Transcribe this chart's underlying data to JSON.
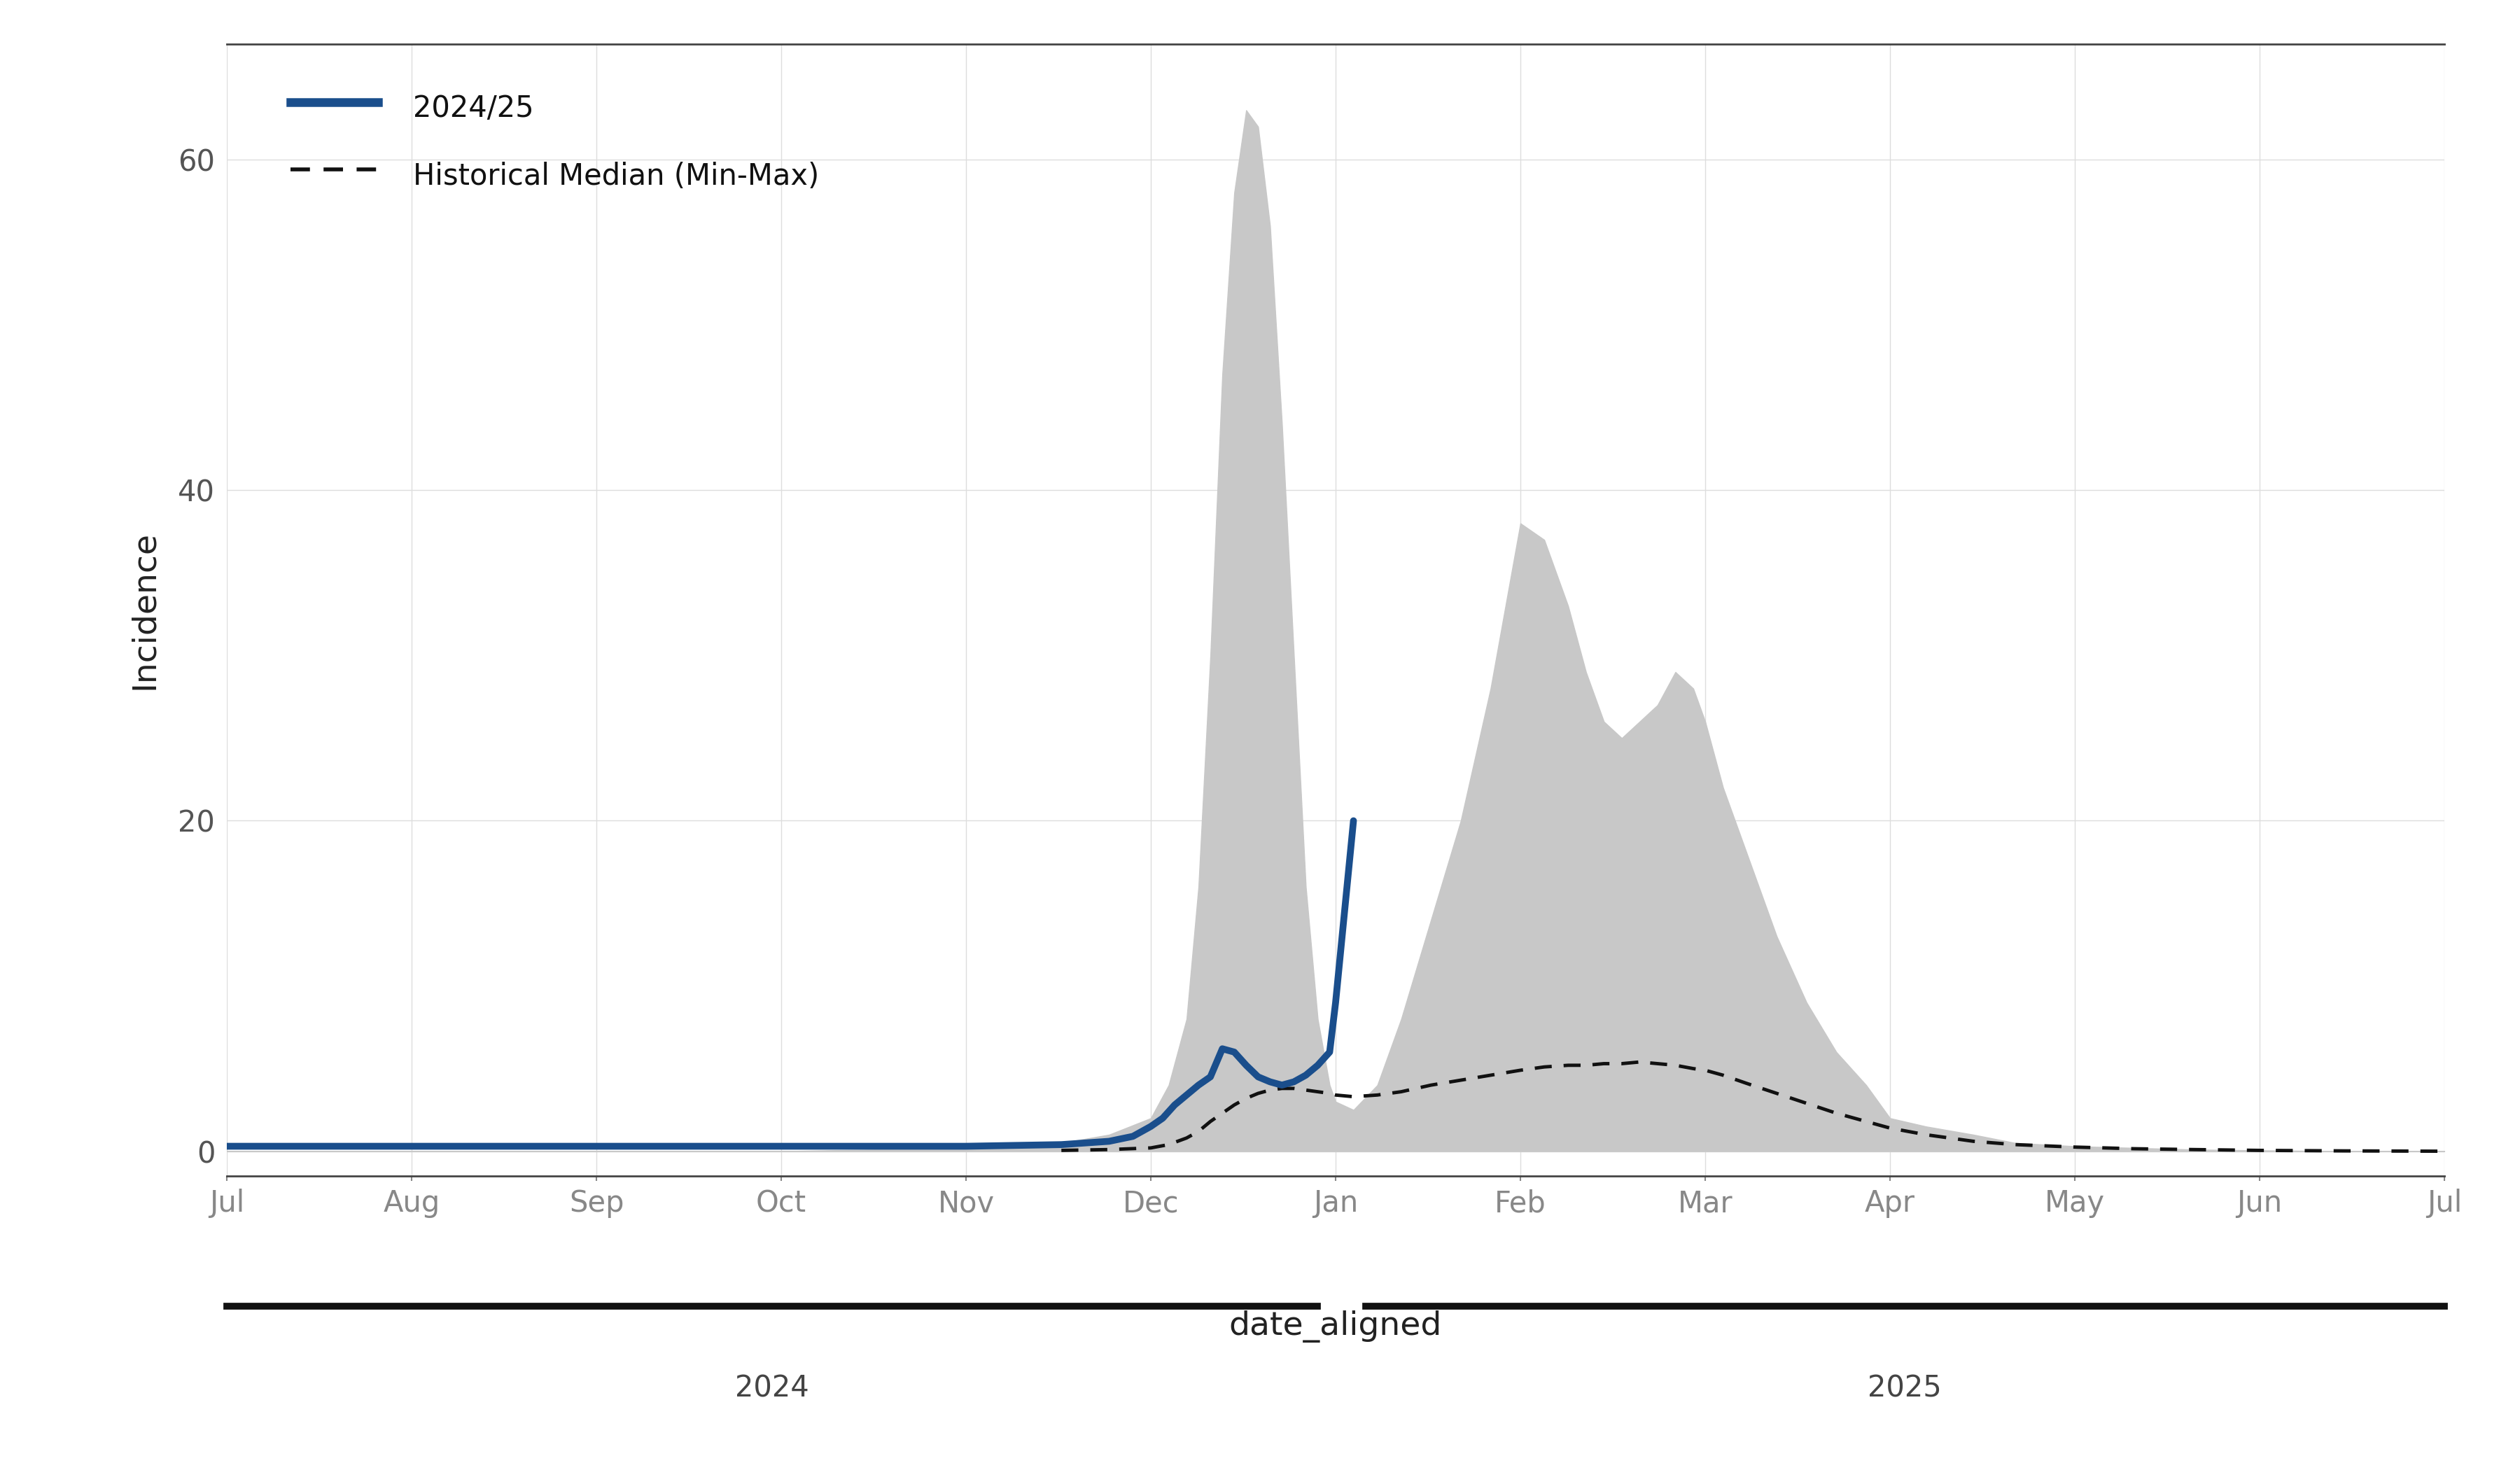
{
  "xlabel": "date_aligned",
  "ylabel": "Incidence",
  "ylim": [
    -1.5,
    67
  ],
  "yticks": [
    0,
    20,
    40,
    60
  ],
  "bg_color": "#ffffff",
  "plot_bg": "#ffffff",
  "grid_color": "#dddddd",
  "current_color": "#1a4e8c",
  "shade_color": "#c8c8c8",
  "median_color": "#111111",
  "legend_labels": [
    "2024/25",
    "Historical Median (Min-Max)"
  ],
  "month_labels": [
    "Jul",
    "Aug",
    "Sep",
    "Oct",
    "Nov",
    "Dec",
    "Jan",
    "Feb",
    "Mar",
    "Apr",
    "May",
    "Jun",
    "Jul"
  ],
  "month_positions": [
    0,
    31,
    62,
    93,
    124,
    155,
    186,
    217,
    248,
    279,
    310,
    341,
    372
  ],
  "shade_x": [
    0,
    93,
    124,
    140,
    148,
    155,
    158,
    161,
    163,
    165,
    167,
    169,
    171,
    173,
    175,
    177,
    179,
    181,
    183,
    185,
    186,
    189,
    193,
    197,
    202,
    207,
    212,
    217,
    221,
    225,
    228,
    231,
    234,
    237,
    240,
    243,
    246,
    248,
    251,
    255,
    260,
    265,
    270,
    275,
    279,
    285,
    293,
    300,
    310,
    320,
    330,
    341,
    355,
    372
  ],
  "shade_max": [
    0,
    0,
    0.2,
    0.5,
    1,
    2,
    4,
    8,
    16,
    30,
    47,
    58,
    63,
    62,
    56,
    44,
    30,
    16,
    8,
    4,
    3,
    2.5,
    4,
    8,
    14,
    20,
    28,
    38,
    37,
    33,
    29,
    26,
    25,
    26,
    27,
    29,
    28,
    26,
    22,
    18,
    13,
    9,
    6,
    4,
    2,
    1.5,
    1,
    0.5,
    0.3,
    0.2,
    0.1,
    0.05,
    0,
    0
  ],
  "shade_min": [
    0,
    0,
    0,
    0,
    0,
    0,
    0,
    0,
    0,
    0,
    0,
    0,
    0,
    0,
    0,
    0,
    0,
    0,
    0,
    0,
    0,
    0,
    0,
    0,
    0,
    0,
    0,
    0,
    0,
    0,
    0,
    0,
    0,
    0,
    0,
    0,
    0,
    0,
    0,
    0,
    0,
    0,
    0,
    0,
    0,
    0,
    0,
    0,
    0,
    0,
    0,
    0,
    0,
    0
  ],
  "median_x": [
    140,
    148,
    155,
    158,
    161,
    163,
    165,
    167,
    169,
    171,
    173,
    175,
    177,
    179,
    181,
    183,
    185,
    186,
    189,
    193,
    197,
    202,
    207,
    212,
    217,
    221,
    225,
    228,
    231,
    234,
    237,
    240,
    243,
    246,
    248,
    251,
    255,
    260,
    265,
    270,
    275,
    279,
    285,
    293,
    300,
    310,
    320,
    330,
    341,
    355,
    372
  ],
  "median_y": [
    0.05,
    0.1,
    0.2,
    0.4,
    0.8,
    1.2,
    1.8,
    2.3,
    2.8,
    3.2,
    3.5,
    3.7,
    3.8,
    3.8,
    3.7,
    3.6,
    3.5,
    3.4,
    3.3,
    3.4,
    3.6,
    4.0,
    4.3,
    4.6,
    4.9,
    5.1,
    5.2,
    5.2,
    5.3,
    5.3,
    5.4,
    5.3,
    5.2,
    5.0,
    4.9,
    4.6,
    4.1,
    3.5,
    2.9,
    2.3,
    1.8,
    1.4,
    1.0,
    0.6,
    0.4,
    0.25,
    0.15,
    0.1,
    0.05,
    0.02,
    0
  ],
  "current_x": [
    0,
    31,
    62,
    93,
    124,
    140,
    148,
    152,
    155,
    157,
    159,
    161,
    163,
    165,
    167,
    169,
    171,
    173,
    175,
    177,
    179,
    181,
    183,
    185,
    186,
    189
  ],
  "current_y": [
    0.3,
    0.3,
    0.3,
    0.3,
    0.3,
    0.4,
    0.6,
    0.9,
    1.5,
    2.0,
    2.8,
    3.4,
    4.0,
    4.5,
    6.2,
    6.0,
    5.2,
    4.5,
    4.2,
    4.0,
    4.2,
    4.6,
    5.2,
    6.0,
    9.0,
    20.0
  ],
  "year_bar_color": "#111111",
  "year_bar_lw": 7,
  "year_label_fontsize": 30,
  "tick_fontsize": 30,
  "axis_label_fontsize": 34,
  "legend_fontsize": 30
}
